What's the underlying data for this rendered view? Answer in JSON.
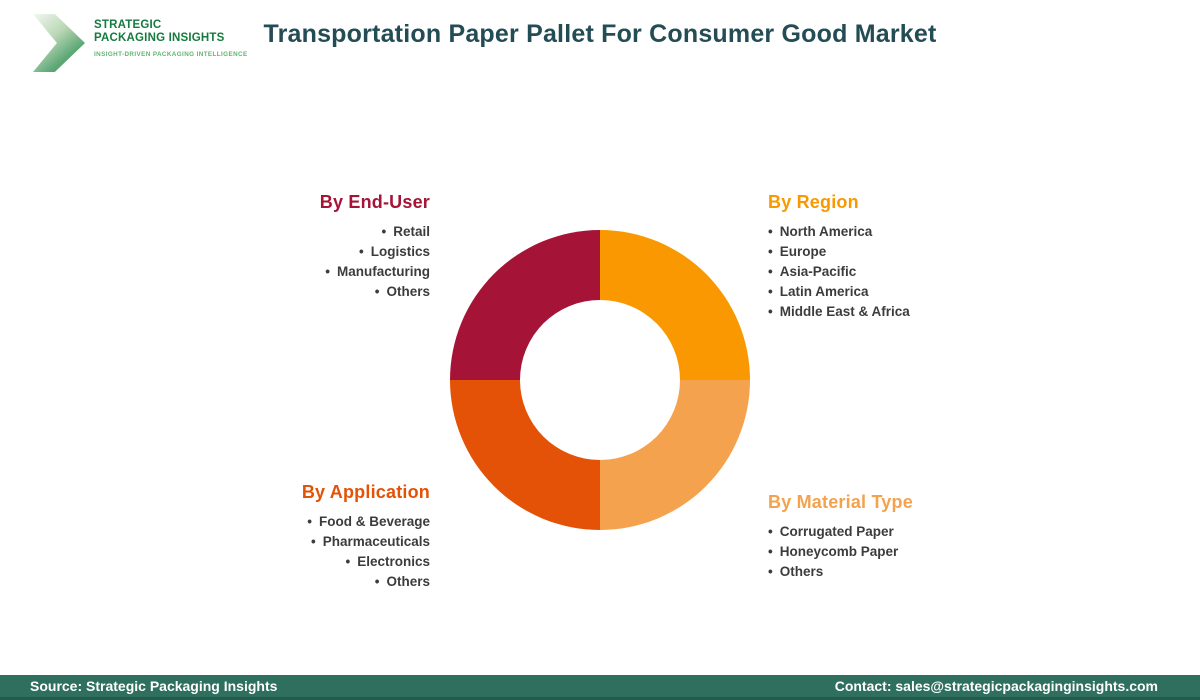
{
  "header": {
    "logo": {
      "line1": "STRATEGIC",
      "line2": "PACKAGING INSIGHTS",
      "tagline": "INSIGHT-DRIVEN PACKAGING INTELLIGENCE",
      "text_color": "#157A3E",
      "tagline_color": "#5CB570"
    },
    "title": "Transportation Paper Pallet For Consumer Good Market",
    "title_color": "#234C55"
  },
  "chart_data": {
    "type": "pie",
    "variant": "donut",
    "title": "Transportation Paper Pallet For Consumer Good Market",
    "legend_position": "corner-labels",
    "inner_radius_ratio": 0.53,
    "start_angle_deg": 0,
    "direction": "clockwise",
    "segments": [
      {
        "label": "By Region",
        "value": 25,
        "color": "#F99800"
      },
      {
        "label": "By Material Type",
        "value": 25,
        "color": "#F4A24D"
      },
      {
        "label": "By Application",
        "value": 25,
        "color": "#E35206"
      },
      {
        "label": "By End-User",
        "value": 25,
        "color": "#A51437"
      }
    ]
  },
  "segments": {
    "end_user": {
      "heading": "By End-User",
      "color": "#A51437",
      "items": [
        "Retail",
        "Logistics",
        "Manufacturing",
        "Others"
      ]
    },
    "region": {
      "heading": "By Region",
      "color": "#F99800",
      "items": [
        "North America",
        "Europe",
        "Asia-Pacific",
        "Latin America",
        "Middle East & Africa"
      ]
    },
    "application": {
      "heading": "By Application",
      "color": "#E35206",
      "items": [
        "Food & Beverage",
        "Pharmaceuticals",
        "Electronics",
        "Others"
      ]
    },
    "material": {
      "heading": "By Material Type",
      "color": "#F4A24D",
      "items": [
        "Corrugated Paper",
        "Honeycomb Paper",
        "Others"
      ]
    }
  },
  "footer": {
    "source": "Source: Strategic Packaging Insights",
    "contact": "Contact: sales@strategicpackaginginsights.com",
    "background": "#2E6F5E",
    "text_color": "#FFFFFF"
  }
}
